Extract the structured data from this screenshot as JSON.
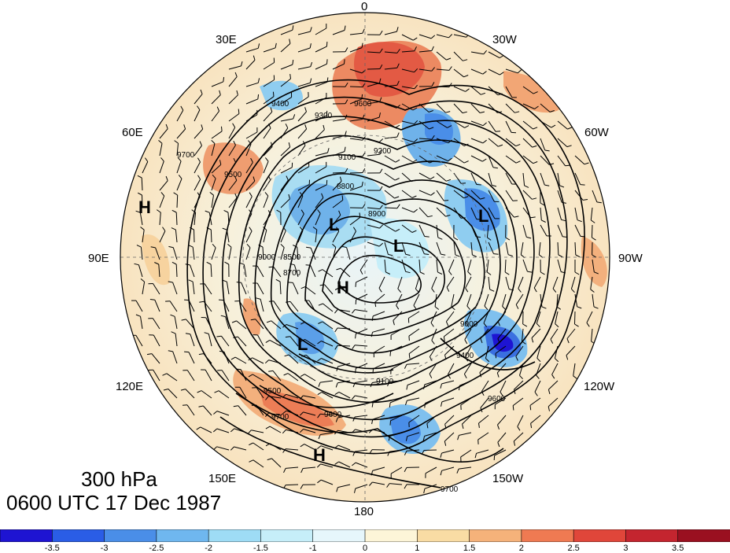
{
  "title": {
    "level": "300 hPa",
    "time": "0600 UTC 17 Dec 1987"
  },
  "longitude_labels": {
    "top": "0",
    "top_left": "30E",
    "top_right": "30W",
    "upper_left": "60E",
    "upper_right": "60W",
    "left": "90E",
    "right": "90W",
    "lower_left": "120E",
    "lower_right": "120W",
    "bottom_left": "150E",
    "bottom_right": "150W",
    "bottom": "180"
  },
  "pressure_centers": [
    {
      "label": "H",
      "region": "north-pacific-left-edge"
    },
    {
      "label": "L",
      "region": "siberia-north"
    },
    {
      "label": "L",
      "region": "hudson-bay"
    },
    {
      "label": "L",
      "region": "north-pole-east"
    },
    {
      "label": "H",
      "region": "arctic-central"
    },
    {
      "label": "L",
      "region": "east-siberia"
    },
    {
      "label": "H",
      "region": "north-pacific-south"
    }
  ],
  "contour_labels": [
    "9600",
    "9400",
    "9300",
    "9200",
    "9100",
    "9000",
    "8900",
    "8800",
    "8700",
    "8500",
    "9500",
    "9700"
  ],
  "colorbar": {
    "ticks": [
      "-3.5",
      "-3",
      "-2.5",
      "-2",
      "-1.5",
      "-1",
      "0",
      "1",
      "1.5",
      "2",
      "2.5",
      "3",
      "3.5"
    ],
    "colors": [
      "#1e14d2",
      "#2a5de6",
      "#4a8ee8",
      "#6fb7ef",
      "#9edcf5",
      "#c6eef9",
      "#e6f6fb",
      "#fdf5d8",
      "#f9dca4",
      "#f5b27a",
      "#ef7a52",
      "#e0463a",
      "#c4252f",
      "#9a1020"
    ]
  }
}
